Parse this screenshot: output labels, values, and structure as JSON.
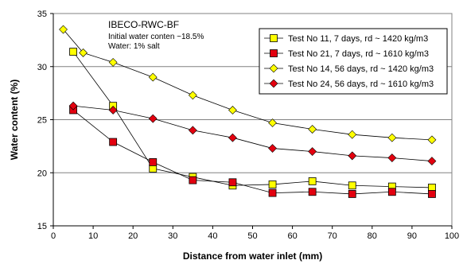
{
  "chart_data": {
    "type": "line",
    "xlabel": "Distance from water inlet (mm)",
    "ylabel": "Water content (%)",
    "xlim": [
      0,
      100
    ],
    "ylim": [
      15,
      35
    ],
    "xticks": [
      0,
      10,
      20,
      30,
      40,
      50,
      60,
      70,
      80,
      90,
      100
    ],
    "yticks": [
      15,
      20,
      25,
      30,
      35
    ],
    "grid": "horizontal",
    "legend_position": "right",
    "annotation": {
      "title": "IBECO-RWC-BF",
      "lines": [
        "Initial water conten ~18.5%",
        "Water: 1% salt"
      ]
    },
    "series": [
      {
        "name": "Test No 11, 7 days, rd ~ 1420 kg/m3",
        "marker": "square",
        "color": "#ffff00",
        "x": [
          5,
          15,
          25,
          35,
          45,
          55,
          65,
          75,
          85,
          95
        ],
        "y": [
          31.4,
          26.3,
          20.4,
          19.6,
          18.8,
          18.9,
          19.2,
          18.8,
          18.7,
          18.6
        ]
      },
      {
        "name": "Test No 21, 7 days, rd ~ 1610 kg/m3",
        "marker": "square",
        "color": "#e3000f",
        "x": [
          5,
          15,
          25,
          35,
          45,
          55,
          65,
          75,
          85,
          95
        ],
        "y": [
          25.9,
          22.9,
          21.0,
          19.3,
          19.1,
          18.1,
          18.2,
          18.0,
          18.2,
          18.0
        ]
      },
      {
        "name": "Test No 14, 56 days, rd ~ 1420 kg/m3",
        "marker": "diamond",
        "color": "#ffff00",
        "x": [
          2.5,
          7.5,
          15,
          25,
          35,
          45,
          55,
          65,
          75,
          85,
          95
        ],
        "y": [
          33.5,
          31.3,
          30.4,
          29.0,
          27.3,
          25.9,
          24.7,
          24.1,
          23.6,
          23.3,
          23.1
        ]
      },
      {
        "name": "Test No 24, 56 days, rd ~ 1610 kg/m3",
        "marker": "diamond",
        "color": "#e3000f",
        "x": [
          5,
          15,
          25,
          35,
          45,
          55,
          65,
          75,
          85,
          95
        ],
        "y": [
          26.3,
          25.9,
          25.1,
          24.0,
          23.3,
          22.3,
          22.0,
          21.6,
          21.4,
          21.1
        ]
      }
    ]
  }
}
